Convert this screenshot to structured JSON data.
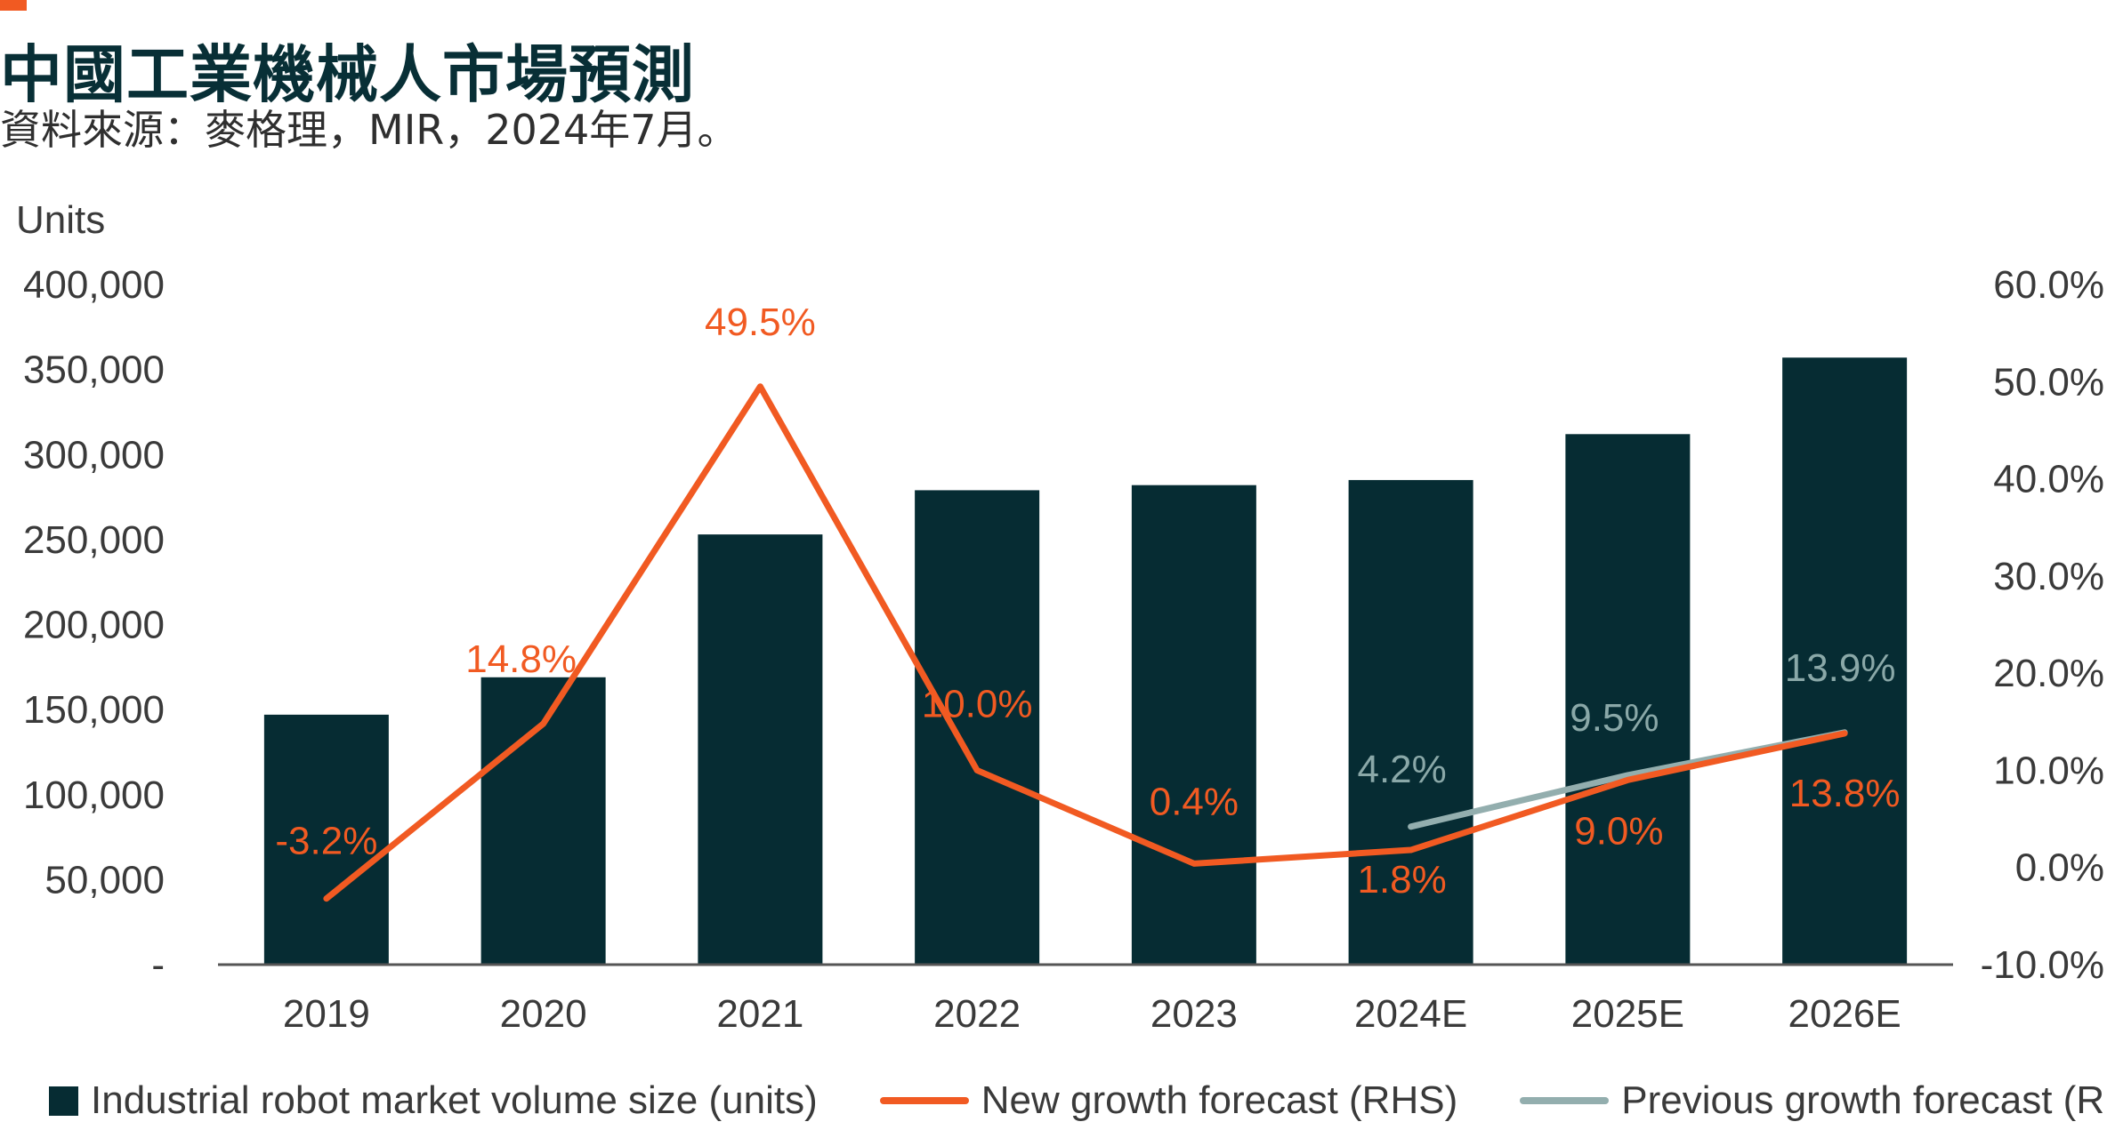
{
  "header": {
    "title": "中國工業機械人市場預測",
    "subtitle": "資料來源：麥格理，MIR，2024年7月。"
  },
  "colors": {
    "accent": "#f15a22",
    "bar": "#062c33",
    "new_forecast": "#f15a22",
    "previous_forecast": "#93aeae"
  },
  "chart_data": {
    "type": "bar",
    "ylabel": "Units",
    "categories": [
      "2019",
      "2020",
      "2021",
      "2022",
      "2023",
      "2024E",
      "2025E",
      "2026E"
    ],
    "y_left": {
      "min": 0,
      "max": 400000,
      "ticks": [
        "-",
        "50,000",
        "100,000",
        "150,000",
        "200,000",
        "250,000",
        "300,000",
        "350,000",
        "400,000"
      ]
    },
    "y_right": {
      "min": -10,
      "max": 60,
      "ticks": [
        "-10.0%",
        "0.0%",
        "10.0%",
        "20.0%",
        "30.0%",
        "40.0%",
        "50.0%",
        "60.0%"
      ]
    },
    "series": [
      {
        "name": "Industrial robot market volume size (units)",
        "axis": "left",
        "kind": "bar",
        "values": [
          147000,
          169000,
          253000,
          279000,
          282000,
          285000,
          312000,
          357000
        ]
      },
      {
        "name": "New growth forecast (RHS)",
        "axis": "right",
        "kind": "line",
        "values": [
          -3.2,
          14.8,
          49.5,
          10.0,
          0.4,
          1.8,
          9.0,
          13.8
        ],
        "labels": [
          "-3.2%",
          "14.8%",
          "49.5%",
          "10.0%",
          "0.4%",
          "1.8%",
          "9.0%",
          "13.8%"
        ]
      },
      {
        "name": "Previous growth forecast (RHS)",
        "axis": "right",
        "kind": "line",
        "values": [
          null,
          null,
          null,
          null,
          null,
          4.2,
          9.5,
          13.9
        ],
        "labels": [
          "",
          "",
          "",
          "",
          "",
          "4.2%",
          "9.5%",
          "13.9%"
        ]
      }
    ],
    "grid": false,
    "legend_position": "bottom"
  }
}
